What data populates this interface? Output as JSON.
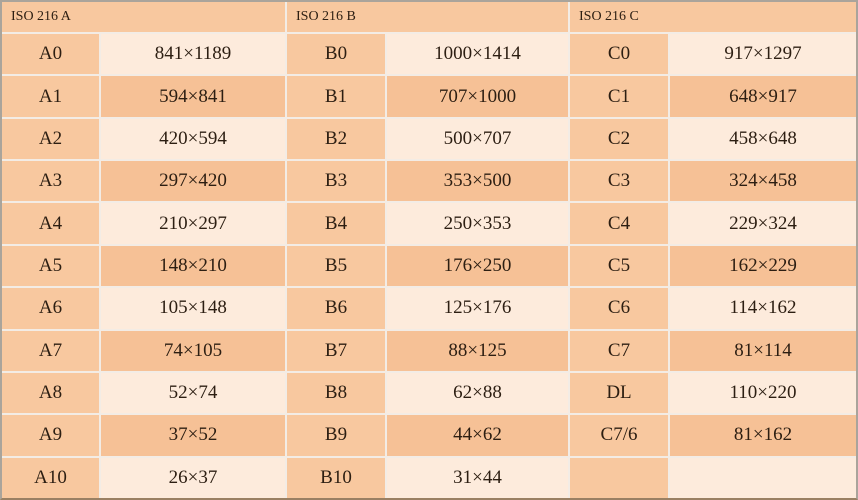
{
  "colors": {
    "peach_header_label": "#f8c89f",
    "peach_dark_value": "#f6c196",
    "light_value": "#fdebdc",
    "grid_gap": "#f3ece5",
    "outer_border": "#aaa49b",
    "text": "#2c1e12"
  },
  "table": {
    "groups": [
      {
        "header": "ISO 216 A",
        "rows": [
          [
            "A0",
            "841×1189"
          ],
          [
            "A1",
            "594×841"
          ],
          [
            "A2",
            "420×594"
          ],
          [
            "A3",
            "297×420"
          ],
          [
            "A4",
            "210×297"
          ],
          [
            "A5",
            "148×210"
          ],
          [
            "A6",
            "105×148"
          ],
          [
            "A7",
            "74×105"
          ],
          [
            "A8",
            "52×74"
          ],
          [
            "A9",
            "37×52"
          ],
          [
            "A10",
            "26×37"
          ]
        ]
      },
      {
        "header": "ISO 216 B",
        "rows": [
          [
            "B0",
            "1000×1414"
          ],
          [
            "B1",
            "707×1000"
          ],
          [
            "B2",
            "500×707"
          ],
          [
            "B3",
            "353×500"
          ],
          [
            "B4",
            "250×353"
          ],
          [
            "B5",
            "176×250"
          ],
          [
            "B6",
            "125×176"
          ],
          [
            "B7",
            "88×125"
          ],
          [
            "B8",
            "62×88"
          ],
          [
            "B9",
            "44×62"
          ],
          [
            "B10",
            "31×44"
          ]
        ]
      },
      {
        "header": "ISO 216 C",
        "rows": [
          [
            "C0",
            "917×1297"
          ],
          [
            "C1",
            "648×917"
          ],
          [
            "C2",
            "458×648"
          ],
          [
            "C3",
            "324×458"
          ],
          [
            "C4",
            "229×324"
          ],
          [
            "C5",
            "162×229"
          ],
          [
            "C6",
            "114×162"
          ],
          [
            "C7",
            "81×114"
          ],
          [
            "DL",
            "110×220"
          ],
          [
            "C7/6",
            "81×162"
          ],
          [
            "",
            ""
          ]
        ]
      }
    ]
  },
  "chart_data": {
    "type": "table",
    "column_groups": [
      "ISO 216 A",
      "ISO 216 B",
      "ISO 216 C"
    ],
    "rows": [
      [
        "A0",
        "841×1189",
        "B0",
        "1000×1414",
        "C0",
        "917×1297"
      ],
      [
        "A1",
        "594×841",
        "B1",
        "707×1000",
        "C1",
        "648×917"
      ],
      [
        "A2",
        "420×594",
        "B2",
        "500×707",
        "C2",
        "458×648"
      ],
      [
        "A3",
        "297×420",
        "B3",
        "353×500",
        "C3",
        "324×458"
      ],
      [
        "A4",
        "210×297",
        "B4",
        "250×353",
        "C4",
        "229×324"
      ],
      [
        "A5",
        "148×210",
        "B5",
        "176×250",
        "C5",
        "162×229"
      ],
      [
        "A6",
        "105×148",
        "B6",
        "125×176",
        "C6",
        "114×162"
      ],
      [
        "A7",
        "74×105",
        "B7",
        "88×125",
        "C7",
        "81×114"
      ],
      [
        "A8",
        "52×74",
        "B8",
        "62×88",
        "DL",
        "110×220"
      ],
      [
        "A9",
        "37×52",
        "B9",
        "44×62",
        "C7/6",
        "81×162"
      ],
      [
        "A10",
        "26×37",
        "B10",
        "31×44",
        "",
        ""
      ]
    ]
  }
}
